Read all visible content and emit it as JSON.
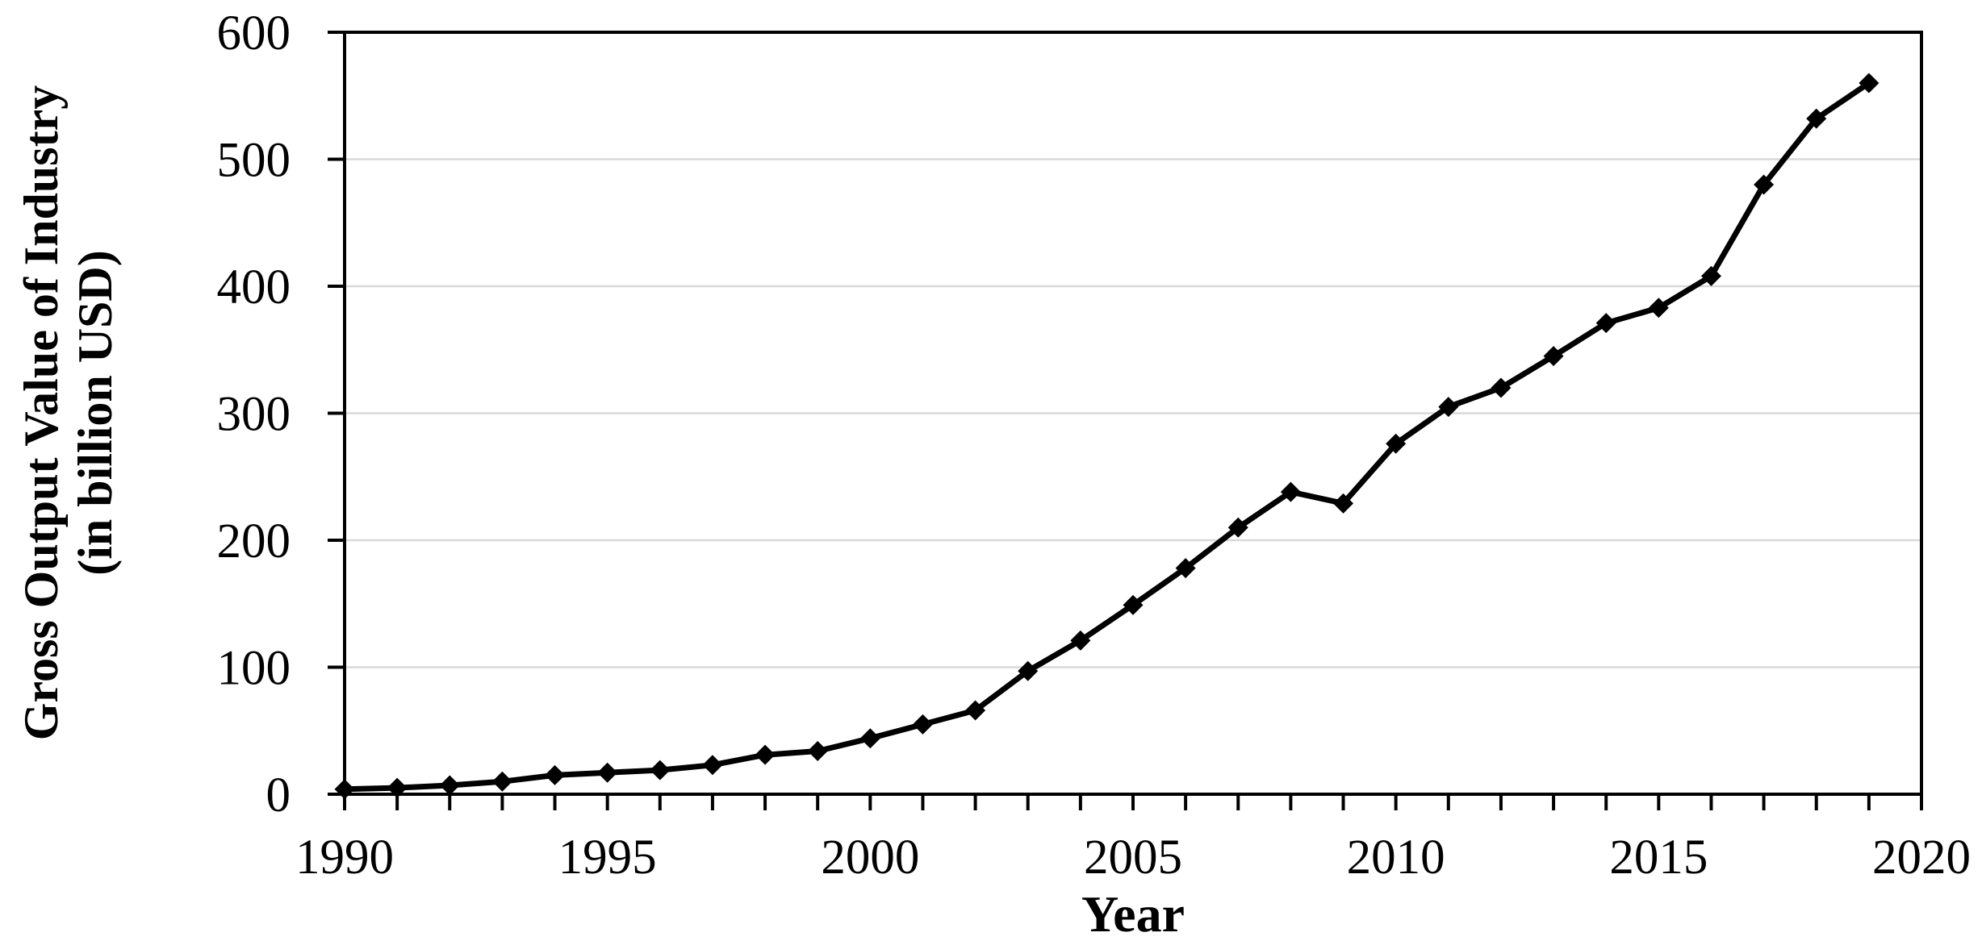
{
  "page": {
    "background_color": "#ffffff"
  },
  "chart_data": {
    "type": "line",
    "title": "",
    "xlabel": "Year",
    "ylabel_line1": "Gross Output Value of Industry",
    "ylabel_line2": "(in billion USD)",
    "x": [
      1990,
      1991,
      1992,
      1993,
      1994,
      1995,
      1996,
      1997,
      1998,
      1999,
      2000,
      2001,
      2002,
      2003,
      2004,
      2005,
      2006,
      2007,
      2008,
      2009,
      2010,
      2011,
      2012,
      2013,
      2014,
      2015,
      2016,
      2017,
      2018,
      2019
    ],
    "values": [
      4,
      5,
      7,
      10,
      15,
      17,
      19,
      23,
      31,
      34,
      44,
      55,
      66,
      97,
      121,
      149,
      178,
      210,
      238,
      229,
      276,
      305,
      320,
      345,
      371,
      383,
      408,
      480,
      532,
      560
    ],
    "xlim": [
      1990,
      2020
    ],
    "ylim": [
      0,
      600
    ],
    "xticks": [
      1990,
      1995,
      2000,
      2005,
      2010,
      2015,
      2020
    ],
    "yticks": [
      0,
      100,
      200,
      300,
      400,
      500,
      600
    ],
    "x_minor_tick_step_years": 1,
    "grid": "horizontal",
    "legend": "none",
    "marker": "diamond",
    "line_color": "#000000",
    "marker_color": "#000000",
    "axis_color": "#000000",
    "gridline_color": "#d9d9d9",
    "background_color": "#ffffff"
  }
}
